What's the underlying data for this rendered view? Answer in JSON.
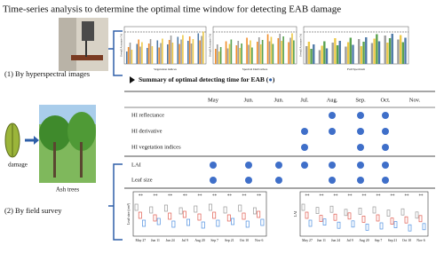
{
  "header": {
    "title": "Time-series analysis to determine the optimal time window for detecting EAB damage"
  },
  "methods": [
    "(1) By hyperspectral images",
    "(2) By field survey"
  ],
  "images": {
    "damage": "damage",
    "trees": "Ash trees"
  },
  "spectral_charts": {
    "y_label": "Overall Accuracy (%)",
    "x_labels": [
      "Vegetation indices",
      "Spectral Derivatives",
      "Full Spectrum"
    ]
  },
  "summary": {
    "title": "Summary of optimal detecting time for EAB (",
    "title_end": ")",
    "columns": [
      "May",
      "Jun.",
      "Jun.",
      "Jul.",
      "Aug.",
      "Sep.",
      "Oct.",
      "Nov."
    ],
    "rows": [
      {
        "label": "HI reflectance",
        "marked": [
          4,
          5,
          6
        ]
      },
      {
        "label": "HI derivative",
        "marked": [
          3,
          4,
          5,
          6
        ]
      },
      {
        "label": "HI vegetation indices",
        "marked": [
          3,
          5,
          6
        ]
      },
      {
        "label": "LAI",
        "marked": [
          0,
          1,
          2,
          3,
          4,
          5,
          6
        ]
      },
      {
        "label": "Leaf size",
        "marked": [
          0,
          1,
          2,
          4,
          5,
          6
        ]
      }
    ]
  },
  "field_charts": {
    "y_labels": [
      "Leaf size (cm²)",
      "LAI"
    ],
    "dates": [
      "May 27",
      "Jun 11",
      "Jun 24",
      "Jul 9",
      "Aug 20",
      "Sep 7",
      "Sep 21",
      "Oct 10",
      "Nov 6"
    ],
    "significance": "**"
  }
}
